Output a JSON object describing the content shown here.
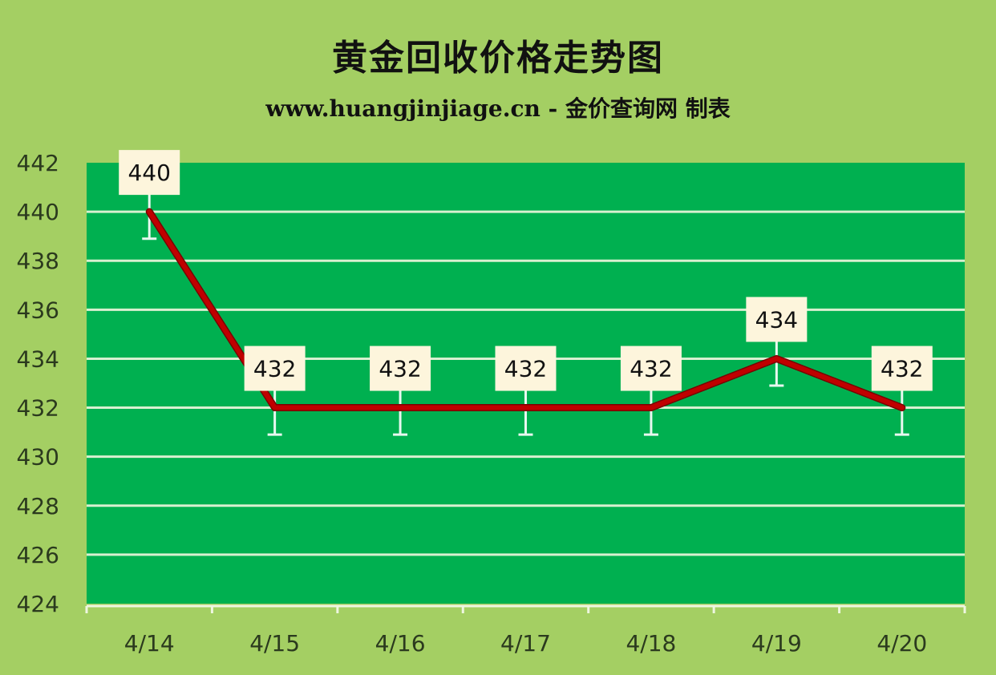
{
  "chart_data": {
    "type": "line",
    "title": "黄金回收价格走势图",
    "subtitle": "www.huangjinjiage.cn - 金价查询网 制表",
    "categories": [
      "4/14",
      "4/15",
      "4/16",
      "4/17",
      "4/18",
      "4/19",
      "4/20"
    ],
    "values": [
      440,
      432,
      432,
      432,
      432,
      434,
      432
    ],
    "data_labels": [
      "440",
      "432",
      "432",
      "432",
      "432",
      "434",
      "432"
    ],
    "error_bar_minus": 1.1,
    "ylim": [
      424,
      442
    ],
    "yticks": [
      424,
      426,
      428,
      430,
      432,
      434,
      436,
      438,
      440,
      442
    ],
    "grid": true,
    "legend": "none",
    "colors": {
      "background": "#a4cf63",
      "plot_area": "#00b050",
      "line": "#c00000",
      "gridline": "#d8f0d0",
      "label_box": "#fdf5dc"
    }
  }
}
